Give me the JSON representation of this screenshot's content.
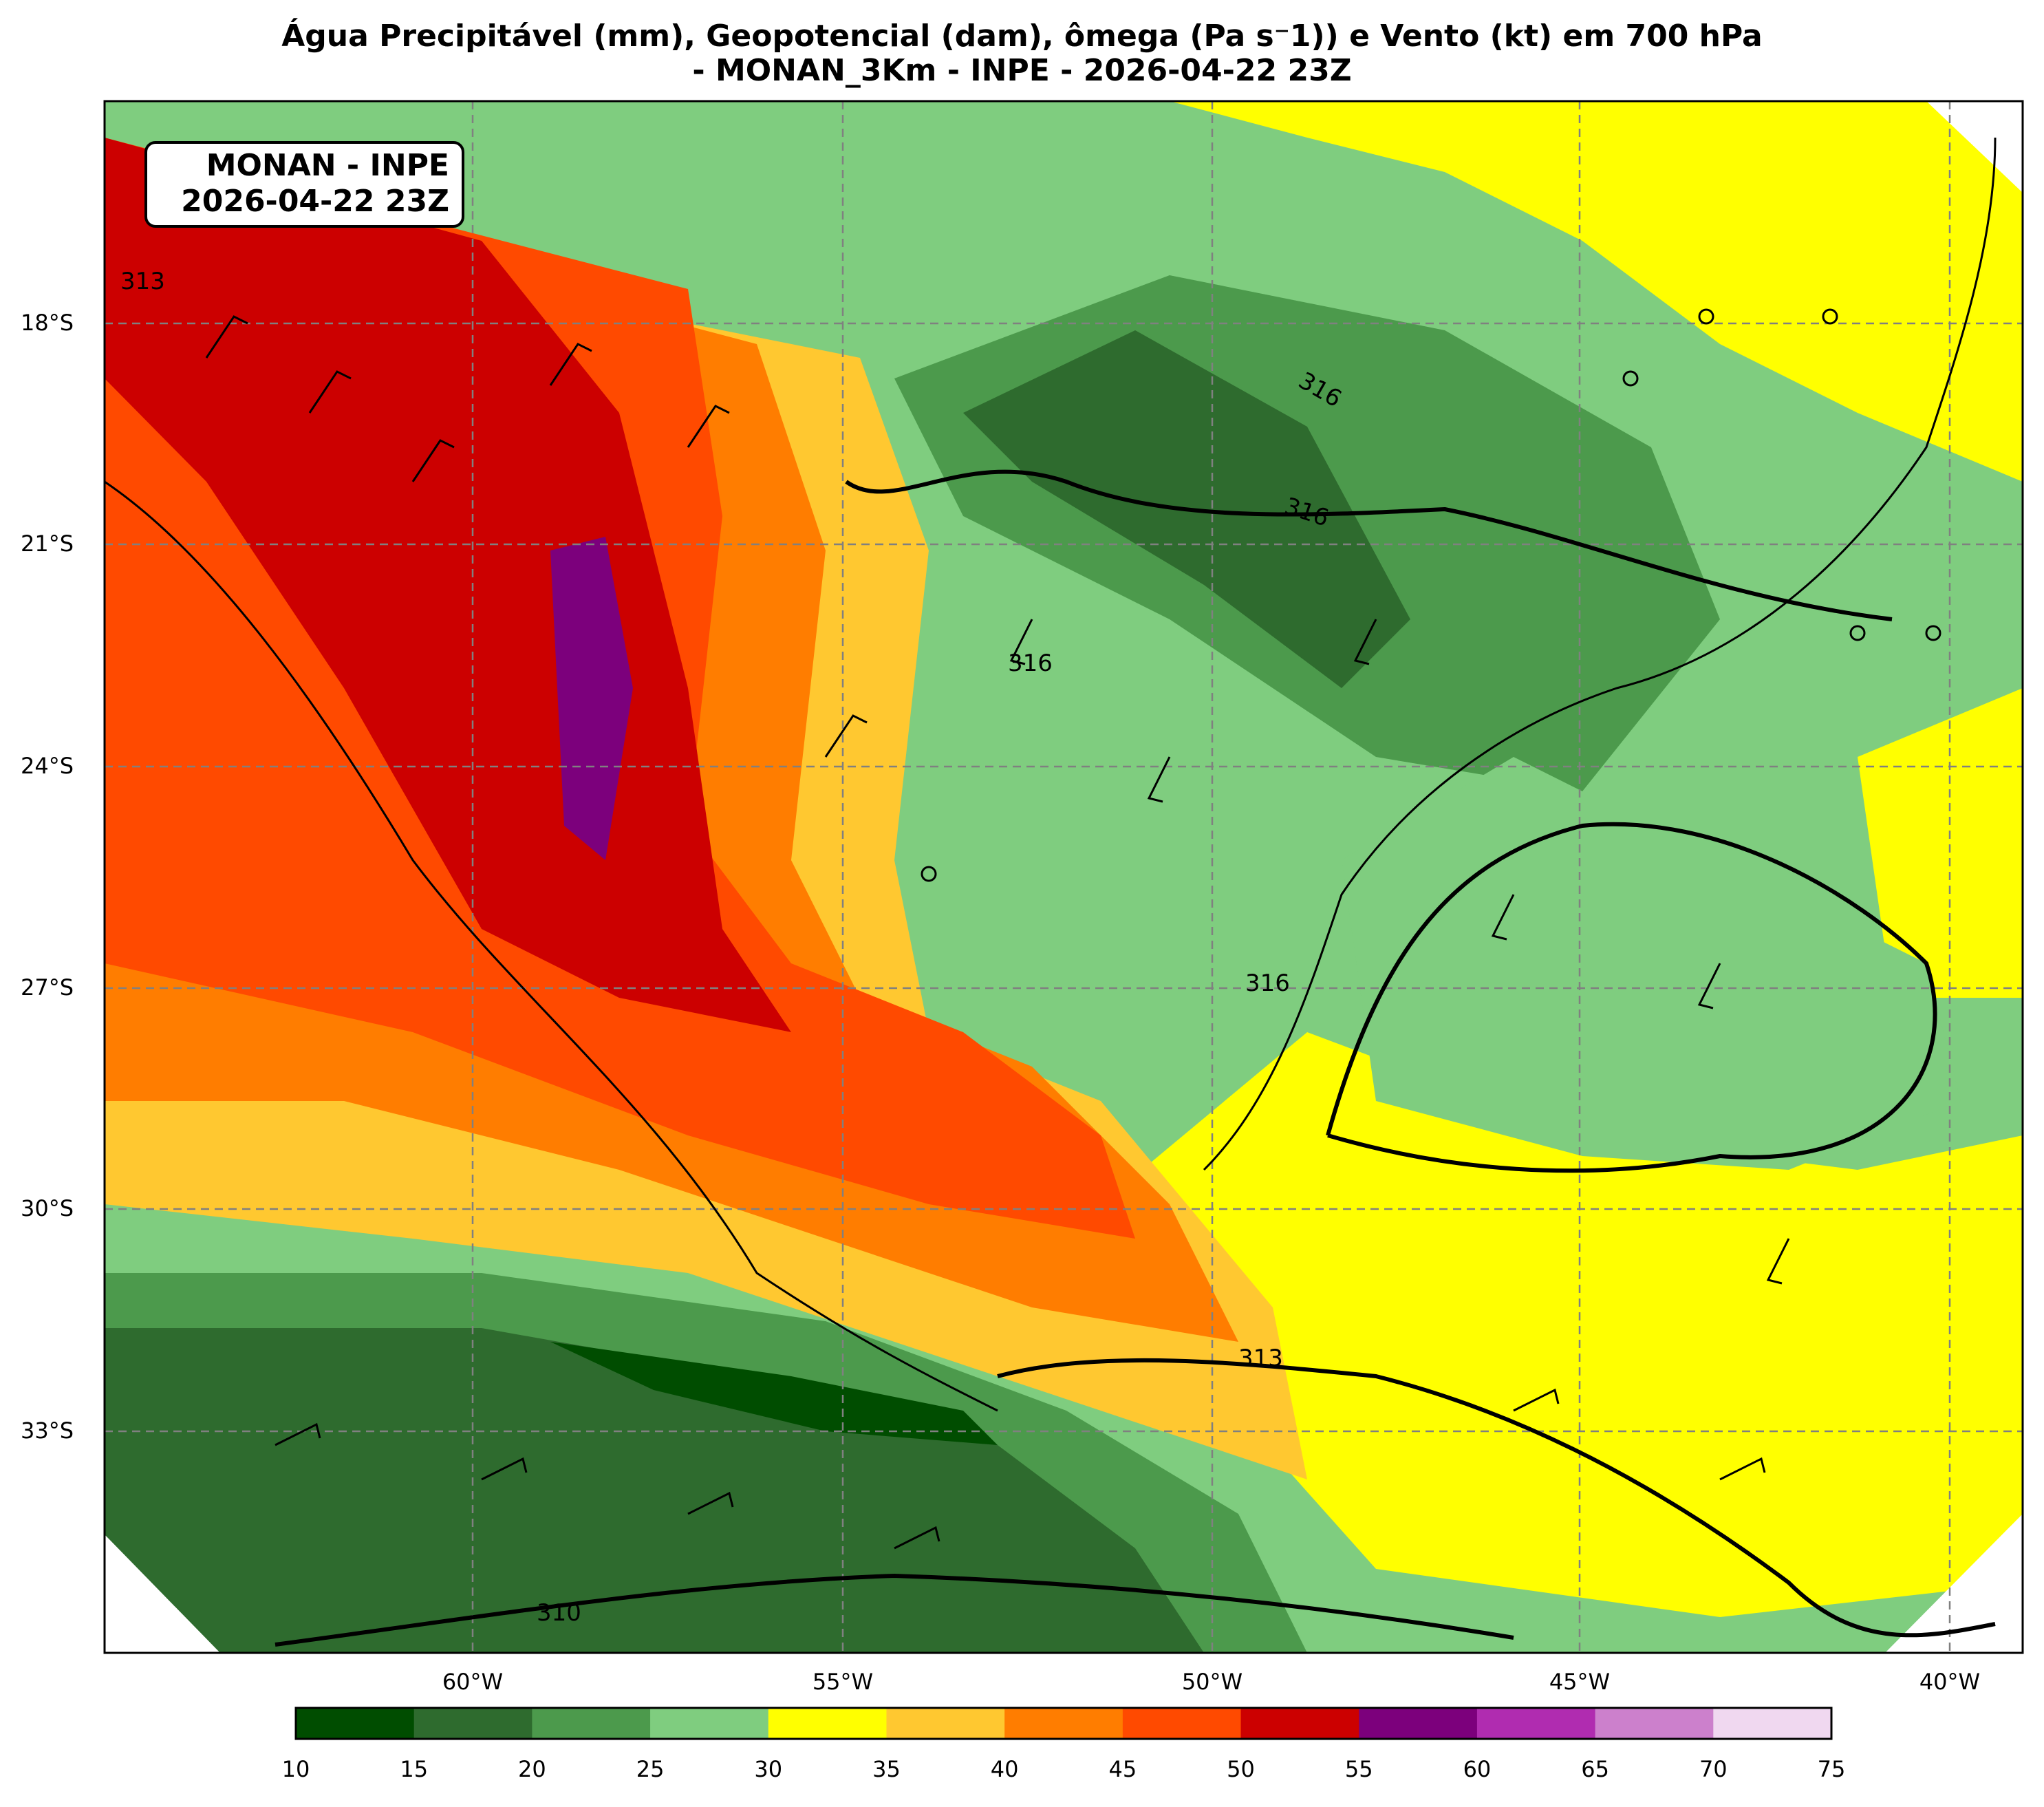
{
  "title": {
    "line1": "Água Precipitável (mm), Geopotencial (dam), ômega (Pa s⁻1)) e Vento (kt) em 700 hPa",
    "line2": "- MONAN_3Km - INPE - 2026-04-22 23Z"
  },
  "badge": {
    "line1": "MONAN - INPE",
    "line2": "2026-04-22 23Z"
  },
  "axes": {
    "lat_labels": [
      "18°S",
      "21°S",
      "24°S",
      "27°S",
      "30°S",
      "33°S"
    ],
    "lon_labels": [
      "60°W",
      "55°W",
      "50°W",
      "45°W",
      "40°W"
    ]
  },
  "contours": {
    "labels": [
      "313",
      "316",
      "316",
      "316",
      "316",
      "313",
      "310"
    ]
  },
  "colorbar": {
    "ticks": [
      "10",
      "15",
      "20",
      "25",
      "30",
      "35",
      "40",
      "45",
      "50",
      "55",
      "60",
      "65",
      "70",
      "75"
    ],
    "colors": [
      "#004d00",
      "#2e6b2e",
      "#4c9a4c",
      "#7fcd7f",
      "#ffff00",
      "#ffc830",
      "#ff7d00",
      "#ff4a00",
      "#cc0000",
      "#7c007c",
      "#b02cb0",
      "#cc80cc",
      "#f0d8f0"
    ]
  }
}
